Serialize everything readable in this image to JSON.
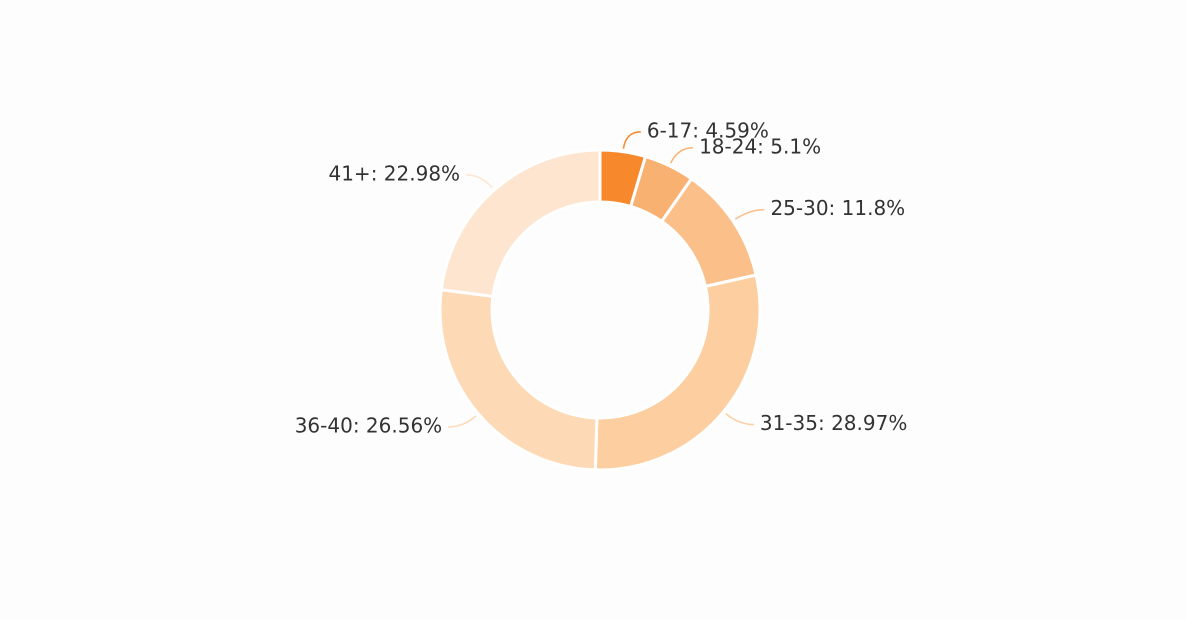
{
  "chart_data": {
    "type": "pie",
    "values": [
      4.59,
      5.1,
      11.8,
      28.97,
      26.56,
      22.98
    ],
    "value_labels": [
      "6-17: 4.59%",
      "18-24: 5.1%",
      "25-30: 11.8%",
      "31-35: 28.97%",
      "36-40: 26.56%",
      "41+: 22.98%"
    ],
    "colors": [
      "#f7882b",
      "#f9b172",
      "#fbbf8a",
      "#fccea0",
      "#fdd9b5",
      "#fde5cf"
    ]
  }
}
